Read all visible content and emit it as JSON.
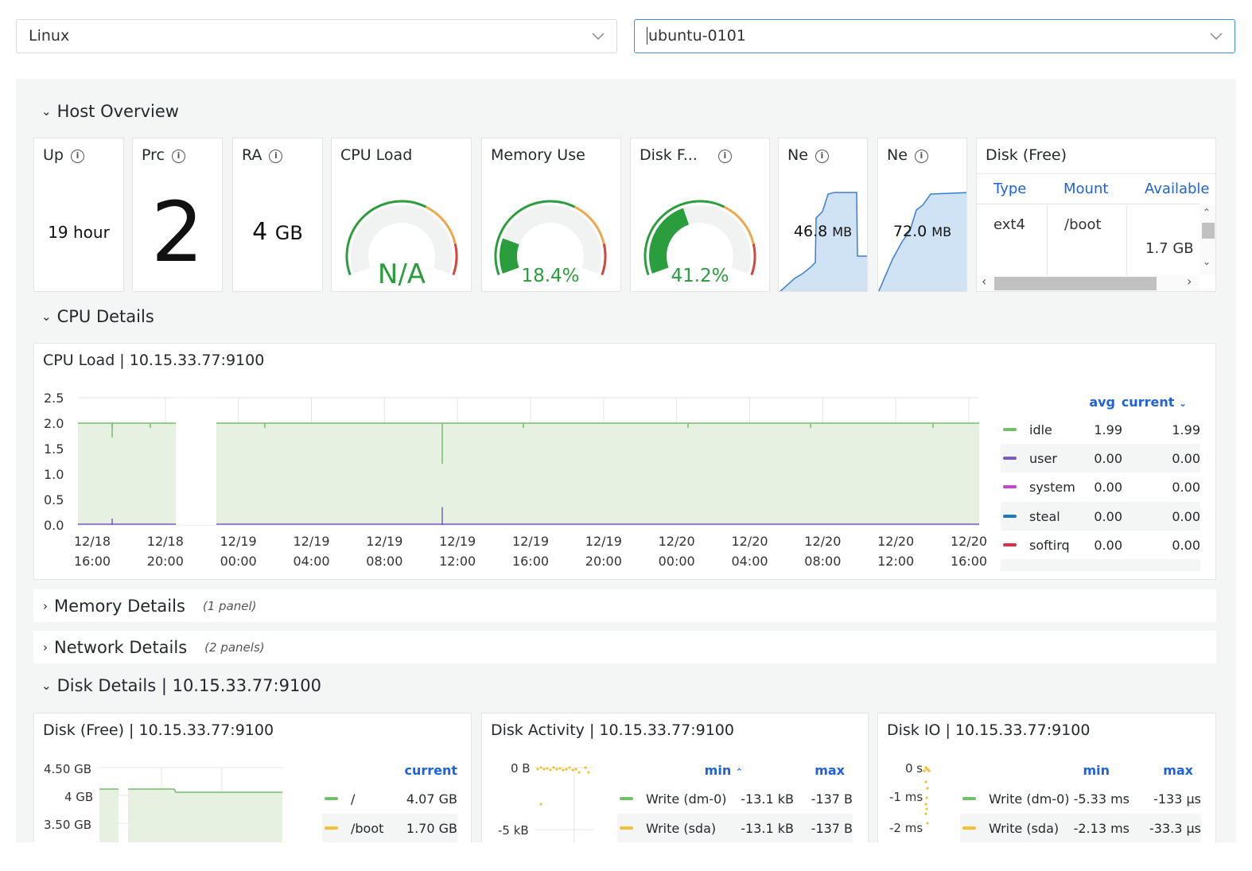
{
  "selectors": {
    "os": "Linux",
    "host": "ubuntu-0101"
  },
  "rows": {
    "host_overview": "Host Overview",
    "cpu_details": "CPU Details",
    "memory_details": "Memory Details",
    "memory_count": "(1 panel)",
    "network_details": "Network Details",
    "network_count": "(2 panels)",
    "disk_details": "Disk Details | 10.15.33.77:9100"
  },
  "stats": {
    "uptime": {
      "title": "Up",
      "value": "19",
      "unit": "hour"
    },
    "processes": {
      "title": "Prc",
      "value": "2"
    },
    "ram": {
      "title": "RA",
      "value": "4",
      "unit": "GB"
    },
    "cpu_load": {
      "title": "CPU Load",
      "value": "N/A",
      "fraction": 0
    },
    "memory_use": {
      "title": "Memory Use",
      "value": "18.4%",
      "fraction": 0.184
    },
    "disk_free": {
      "title": "Disk F...",
      "value": "41.2%",
      "fraction": 0.412
    },
    "net_in": {
      "title": "Ne",
      "value": "46.8",
      "unit": "MB"
    },
    "net_out": {
      "title": "Ne",
      "value": "72.0",
      "unit": "MB"
    }
  },
  "disk_free_table": {
    "title": "Disk (Free)",
    "headers": [
      "Type",
      "Mount",
      "Available"
    ],
    "rows": [
      {
        "type": "ext4",
        "mount": "/boot",
        "available": "1.7 GB"
      }
    ]
  },
  "cpu_panel": {
    "title": "CPU Load | 10.15.33.77:9100",
    "legend_headers": [
      "avg",
      "current"
    ],
    "legend": [
      {
        "name": "idle",
        "avg": "1.99",
        "current": "1.99",
        "color": "#73bf69"
      },
      {
        "name": "user",
        "avg": "0.00",
        "current": "0.00",
        "color": "#7a5bbf"
      },
      {
        "name": "system",
        "avg": "0.00",
        "current": "0.00",
        "color": "#c744c7"
      },
      {
        "name": "steal",
        "avg": "0.00",
        "current": "0.00",
        "color": "#1f78c1"
      },
      {
        "name": "softirq",
        "avg": "0.00",
        "current": "0.00",
        "color": "#e02f44"
      }
    ]
  },
  "chart_data": [
    {
      "type": "area",
      "title": "CPU Load | 10.15.33.77:9100",
      "x_ticks": [
        "12/18 16:00",
        "12/18 20:00",
        "12/19 00:00",
        "12/19 04:00",
        "12/19 08:00",
        "12/19 12:00",
        "12/19 16:00",
        "12/19 20:00",
        "12/20 00:00",
        "12/20 04:00",
        "12/20 08:00",
        "12/20 12:00",
        "12/20 16:00"
      ],
      "y_ticks": [
        "0.0",
        "0.5",
        "1.0",
        "1.5",
        "2.0",
        "2.5"
      ],
      "ylim": [
        0,
        2.5
      ],
      "series": [
        {
          "name": "idle",
          "values": [
            2.0,
            2.0,
            2.0,
            2.0,
            2.0,
            1.2,
            2.0,
            2.0,
            2.0,
            2.0,
            2.0,
            2.0,
            2.0
          ]
        },
        {
          "name": "user",
          "values": [
            0,
            0,
            0,
            0,
            0,
            0.35,
            0,
            0,
            0,
            0,
            0,
            0,
            0
          ]
        }
      ]
    },
    {
      "type": "area",
      "title": "Disk (Free) | 10.15.33.77:9100",
      "y_ticks": [
        "4.50 GB",
        "4 GB",
        "3.50 GB"
      ],
      "series": [
        {
          "name": "/",
          "current": "4.07 GB"
        },
        {
          "name": "/boot",
          "current": "1.70 GB"
        }
      ]
    },
    {
      "type": "scatter",
      "title": "Disk Activity | 10.15.33.77:9100",
      "y_ticks": [
        "0 B",
        "-5 kB"
      ],
      "series": [
        {
          "name": "Write (dm-0)",
          "min": "-13.1 kB",
          "max": "-137 B"
        },
        {
          "name": "Write (sda)",
          "min": "-13.1 kB",
          "max": "-137 B"
        }
      ]
    },
    {
      "type": "scatter",
      "title": "Disk IO | 10.15.33.77:9100",
      "y_ticks": [
        "0 s",
        "-1 ms",
        "-2 ms"
      ],
      "series": [
        {
          "name": "Write (dm-0)",
          "min": "-5.33 ms",
          "max": "-133 µs"
        },
        {
          "name": "Write (sda)",
          "min": "-2.13 ms",
          "max": "-33.3 µs"
        }
      ]
    }
  ],
  "disk_panels": {
    "free_title": "Disk (Free) | 10.15.33.77:9100",
    "free_header": "current",
    "free_legend": [
      {
        "name": "/",
        "current": "4.07 GB",
        "color": "#73bf69"
      },
      {
        "name": "/boot",
        "current": "1.70 GB",
        "color": "#f2c037"
      }
    ],
    "activity_title": "Disk Activity | 10.15.33.77:9100",
    "io_title": "Disk IO | 10.15.33.77:9100",
    "minmax_headers": [
      "min",
      "max"
    ],
    "activity_legend": [
      {
        "name": "Write (dm-0)",
        "min": "-13.1 kB",
        "max": "-137 B",
        "color": "#73bf69"
      },
      {
        "name": "Write (sda)",
        "min": "-13.1 kB",
        "max": "-137 B",
        "color": "#f2c037"
      }
    ],
    "io_legend": [
      {
        "name": "Write (dm-0)",
        "min": "-5.33 ms",
        "max": "-133 µs",
        "color": "#73bf69"
      },
      {
        "name": "Write (sda)",
        "min": "-2.13 ms",
        "max": "-33.3 µs",
        "color": "#f2c037"
      }
    ]
  }
}
